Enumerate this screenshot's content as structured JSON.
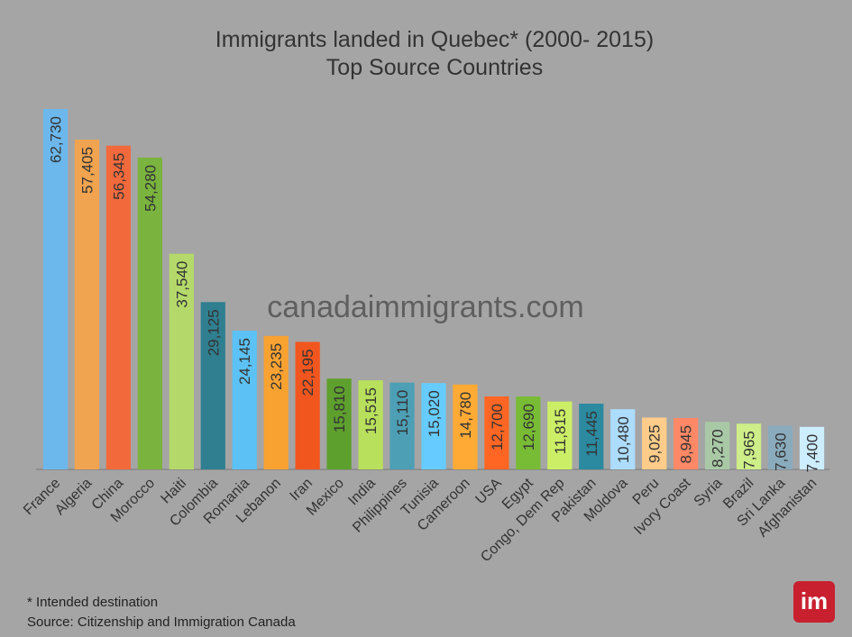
{
  "chart_data": {
    "type": "bar",
    "title": "Immigrants landed in Quebec* (2000- 2015)",
    "subtitle": "Top Source Countries",
    "watermark": "canadaimmigrants.com",
    "footnotes": [
      "* Intended destination",
      "Source: Citizenship and Immigration Canada"
    ],
    "logo": "im",
    "categories": [
      "France",
      "Algeria",
      "China",
      "Morocco",
      "Haiti",
      "Colombia",
      "Romania",
      "Lebanon",
      "Iran",
      "Mexico",
      "India",
      "Philippines",
      "Tunisia",
      "Cameroon",
      "USA",
      "Egypt",
      "Congo, Dem Rep",
      "Pakistan",
      "Moldova",
      "Peru",
      "Ivory Coast",
      "Syria",
      "Brazil",
      "Sri Lanka",
      "Afghanistan"
    ],
    "values": [
      62730,
      57405,
      56345,
      54280,
      37540,
      29125,
      24145,
      23235,
      22195,
      15810,
      15515,
      15110,
      15020,
      14780,
      12700,
      12690,
      11815,
      11445,
      10480,
      9025,
      8945,
      8270,
      7965,
      7630,
      7400
    ],
    "value_labels": [
      "62,730",
      "57,405",
      "56,345",
      "54,280",
      "37,540",
      "29,125",
      "24,145",
      "23,235",
      "22,195",
      "15,810",
      "15,515",
      "15,110",
      "15,020",
      "14,780",
      "12,700",
      "12,690",
      "11,815",
      "11,445",
      "10,480",
      "9,025",
      "8,945",
      "8,270",
      "7,965",
      "7,630",
      "7,400"
    ],
    "colors": [
      "#6cb8ec",
      "#f0a450",
      "#f26a3c",
      "#7ab33e",
      "#b4d96a",
      "#2f7f90",
      "#5cc2f5",
      "#f8a232",
      "#f2561f",
      "#5ea02e",
      "#b9e05c",
      "#4c9fb5",
      "#66ccff",
      "#ffaa35",
      "#ff6624",
      "#78bb34",
      "#ccee66",
      "#2b8aa0",
      "#acdcff",
      "#ffcc8a",
      "#ff8866",
      "#a9c9a6",
      "#cdee88",
      "#89abbc",
      "#cdeeff"
    ]
  }
}
